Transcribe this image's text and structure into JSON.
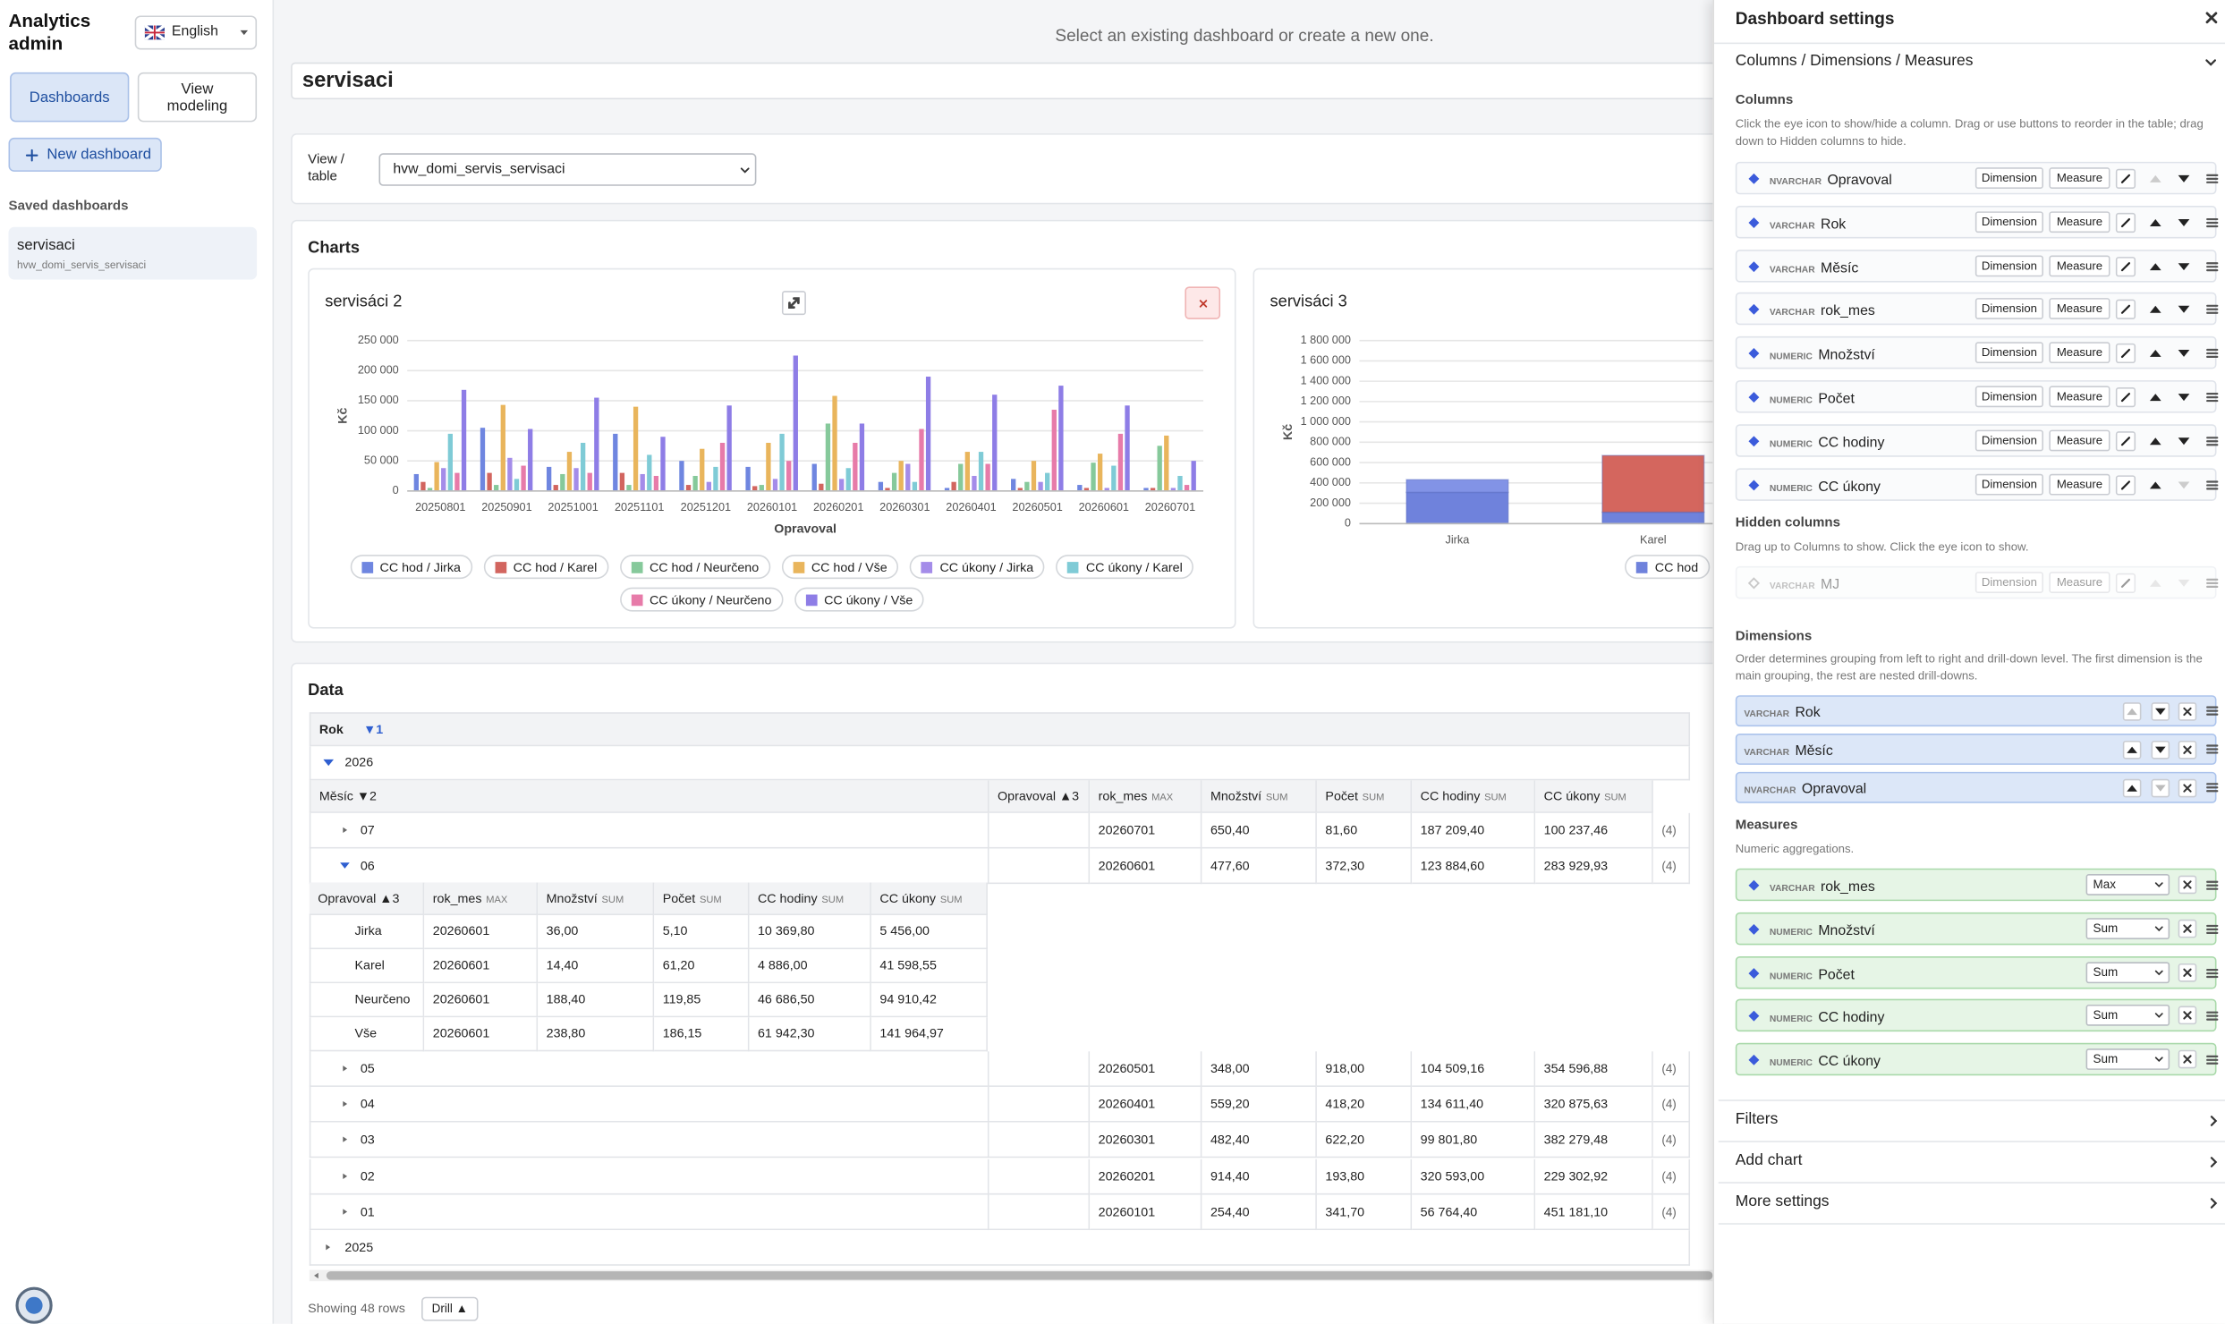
{
  "sidebar": {
    "brand": "Analytics admin",
    "language": "English",
    "nav": [
      "Dashboards",
      "View modeling"
    ],
    "new_dashboard": "New dashboard",
    "saved_title": "Saved dashboards",
    "saved": [
      {
        "name": "servisaci",
        "view": "hvw_domi_servis_servisaci"
      }
    ]
  },
  "main": {
    "hint": "Select an existing dashboard or create a new one.",
    "dashboard_name": "servisaci",
    "view_label": "View / table",
    "view_value": "hvw_domi_servis_servisaci",
    "charts_title": "Charts",
    "data_title": "Data"
  },
  "chart_data": [
    {
      "type": "bar",
      "title": "servisáci 2",
      "y_label": "Kč",
      "x_label": "Opravoval",
      "categories": [
        "20250801",
        "20250901",
        "20251001",
        "20251101",
        "20251201",
        "20260101",
        "20260201",
        "20260301",
        "20260401",
        "20260501",
        "20260601",
        "20260701"
      ],
      "series": [
        {
          "name": "CC hod / Jirka",
          "color": "#6f86e0",
          "values": [
            28000,
            105000,
            40000,
            95000,
            50000,
            40000,
            45000,
            15000,
            5000,
            20000,
            10000,
            5000
          ]
        },
        {
          "name": "CC hod / Karel",
          "color": "#d2655f",
          "values": [
            15000,
            30000,
            10000,
            30000,
            10000,
            8000,
            12000,
            5000,
            15000,
            5000,
            5000,
            5000
          ]
        },
        {
          "name": "CC hod / Neurčeno",
          "color": "#86c99b",
          "values": [
            5000,
            10000,
            28000,
            10000,
            25000,
            10000,
            112000,
            30000,
            45000,
            15000,
            47000,
            75000
          ]
        },
        {
          "name": "CC hod / Vše",
          "color": "#e9b55c",
          "values": [
            48000,
            143000,
            65000,
            140000,
            70000,
            80000,
            158000,
            50000,
            65000,
            50000,
            62000,
            92000
          ]
        },
        {
          "name": "CC úkony / Jirka",
          "color": "#a48ce9",
          "values": [
            38000,
            55000,
            38000,
            28000,
            15000,
            20000,
            20000,
            45000,
            25000,
            15000,
            5000,
            5000
          ]
        },
        {
          "name": "CC úkony / Karel",
          "color": "#7fcbd6",
          "values": [
            95000,
            20000,
            80000,
            60000,
            40000,
            95000,
            38000,
            15000,
            65000,
            30000,
            42000,
            25000
          ]
        },
        {
          "name": "CC úkony / Neurčeno",
          "color": "#e77ba9",
          "values": [
            30000,
            42000,
            30000,
            25000,
            80000,
            50000,
            80000,
            103000,
            45000,
            135000,
            95000,
            10000
          ]
        },
        {
          "name": "CC úkony / Vše",
          "color": "#8e7de6",
          "values": [
            168000,
            103000,
            155000,
            90000,
            142000,
            225000,
            112000,
            190000,
            160000,
            175000,
            142000,
            50000
          ]
        }
      ],
      "ylim": [
        0,
        250000
      ],
      "yticks": [
        0,
        {
          "value": 50000,
          "label": "50 000"
        },
        {
          "value": 100000,
          "label": "100 000"
        },
        {
          "value": 150000,
          "label": "150 000"
        },
        {
          "value": 200000,
          "label": "200 000"
        },
        {
          "value": 250000,
          "label": "250 000"
        }
      ],
      "grid": true,
      "legend": "bottom"
    },
    {
      "type": "bar",
      "stacked": true,
      "title": "servisáci 3",
      "y_label": "Kč",
      "categories": [
        "Jirka",
        "Karel"
      ],
      "series": [
        {
          "name": "CC hod",
          "color": "#6f82dc",
          "values": [
            307000,
            112000
          ]
        },
        {
          "color": "#d4665e",
          "colors": [
            "#8293e6",
            "#d4665e"
          ],
          "values": [
            125000,
            558000
          ]
        }
      ],
      "ylim": [
        0,
        1800000
      ],
      "yticks": [
        0,
        {
          "value": 200000,
          "label": "200 000"
        },
        {
          "value": 400000,
          "label": "400 000"
        },
        {
          "value": 600000,
          "label": "600 000"
        },
        {
          "value": 800000,
          "label": "800 000"
        },
        {
          "value": 1000000,
          "label": "1 000 000"
        },
        {
          "value": 1200000,
          "label": "1 200 000"
        },
        {
          "value": 1400000,
          "label": "1 400 000"
        },
        {
          "value": 1600000,
          "label": "1 600 000"
        },
        {
          "value": 1800000,
          "label": "1 800 000"
        }
      ],
      "grid": true,
      "legend": "bottom"
    }
  ],
  "table": {
    "group": {
      "label": "Rok",
      "sort": "▼1"
    },
    "years": [
      "2026",
      "2025"
    ],
    "month_header": "Měsíc ▼2",
    "columns": [
      {
        "name": "Opravoval ▲3"
      },
      {
        "name": "rok_mes",
        "agg": "MAX"
      },
      {
        "name": "Množství",
        "agg": "SUM"
      },
      {
        "name": "Počet",
        "agg": "SUM"
      },
      {
        "name": "CC hodiny",
        "agg": "SUM"
      },
      {
        "name": "CC úkony",
        "agg": "SUM"
      }
    ],
    "months": [
      {
        "label": "07",
        "values": [
          "20260701",
          "650,40",
          "81,60",
          "187 209,40",
          "100 237,46"
        ],
        "count": "(4)"
      },
      {
        "label": "06",
        "values": [
          "20260601",
          "477,60",
          "372,30",
          "123 884,60",
          "283 929,93"
        ],
        "count": "(4)"
      },
      {
        "label": "05",
        "values": [
          "20260501",
          "348,00",
          "918,00",
          "104 509,16",
          "354 596,88"
        ],
        "count": "(4)"
      },
      {
        "label": "04",
        "values": [
          "20260401",
          "559,20",
          "418,20",
          "134 611,40",
          "320 875,63"
        ],
        "count": "(4)"
      },
      {
        "label": "03",
        "values": [
          "20260301",
          "482,40",
          "622,20",
          "99 801,80",
          "382 279,48"
        ],
        "count": "(4)"
      },
      {
        "label": "02",
        "values": [
          "20260201",
          "914,40",
          "193,80",
          "320 593,00",
          "229 302,92"
        ],
        "count": "(4)"
      },
      {
        "label": "01",
        "values": [
          "20260101",
          "254,40",
          "341,70",
          "56 764,40",
          "451 181,10"
        ],
        "count": "(4)"
      }
    ],
    "detail_rows": [
      [
        "Jirka",
        "20260601",
        "36,00",
        "5,10",
        "10 369,80",
        "5 456,00"
      ],
      [
        "Karel",
        "20260601",
        "14,40",
        "61,20",
        "4 886,00",
        "41 598,55"
      ],
      [
        "Neurčeno",
        "20260601",
        "188,40",
        "119,85",
        "46 686,50",
        "94 910,42"
      ],
      [
        "Vše",
        "20260601",
        "238,80",
        "186,15",
        "61 942,30",
        "141 964,97"
      ]
    ],
    "footer": "Showing 48 rows",
    "drill": "Drill ▲"
  },
  "settings": {
    "title": "Dashboard settings",
    "section": "Columns / Dimensions / Measures",
    "columns_title": "Columns",
    "columns_desc": "Click the eye icon to show/hide a column. Drag or use buttons to reorder in the table; drag down to Hidden columns to hide.",
    "role_buttons": [
      "Dimension",
      "Measure"
    ],
    "columns": [
      {
        "type": "NVARCHAR",
        "name": "Opravoval"
      },
      {
        "type": "VARCHAR",
        "name": "Rok"
      },
      {
        "type": "VARCHAR",
        "name": "Měsíc"
      },
      {
        "type": "VARCHAR",
        "name": "rok_mes"
      },
      {
        "type": "NUMERIC",
        "name": "Množství"
      },
      {
        "type": "NUMERIC",
        "name": "Počet"
      },
      {
        "type": "NUMERIC",
        "name": "CC hodiny"
      },
      {
        "type": "NUMERIC",
        "name": "CC úkony"
      }
    ],
    "hidden_title": "Hidden columns",
    "hidden_desc": "Drag up to Columns to show. Click the eye icon to show.",
    "hidden": [
      {
        "type": "VARCHAR",
        "name": "MJ"
      }
    ],
    "dimensions_title": "Dimensions",
    "dimensions_desc": "Order determines grouping from left to right and drill-down level. The first dimension is the main grouping, the rest are nested drill-downs.",
    "dimensions": [
      {
        "type": "VARCHAR",
        "name": "Rok"
      },
      {
        "type": "VARCHAR",
        "name": "Měsíc"
      },
      {
        "type": "NVARCHAR",
        "name": "Opravoval"
      }
    ],
    "measures_title": "Measures",
    "measures_desc": "Numeric aggregations.",
    "measures": [
      {
        "type": "VARCHAR",
        "name": "rok_mes",
        "agg": "Max"
      },
      {
        "type": "NUMERIC",
        "name": "Množství",
        "agg": "Sum"
      },
      {
        "type": "NUMERIC",
        "name": "Počet",
        "agg": "Sum"
      },
      {
        "type": "NUMERIC",
        "name": "CC hodiny",
        "agg": "Sum"
      },
      {
        "type": "NUMERIC",
        "name": "CC úkony",
        "agg": "Sum"
      }
    ],
    "sections": [
      "Filters",
      "Add chart",
      "More settings"
    ]
  }
}
